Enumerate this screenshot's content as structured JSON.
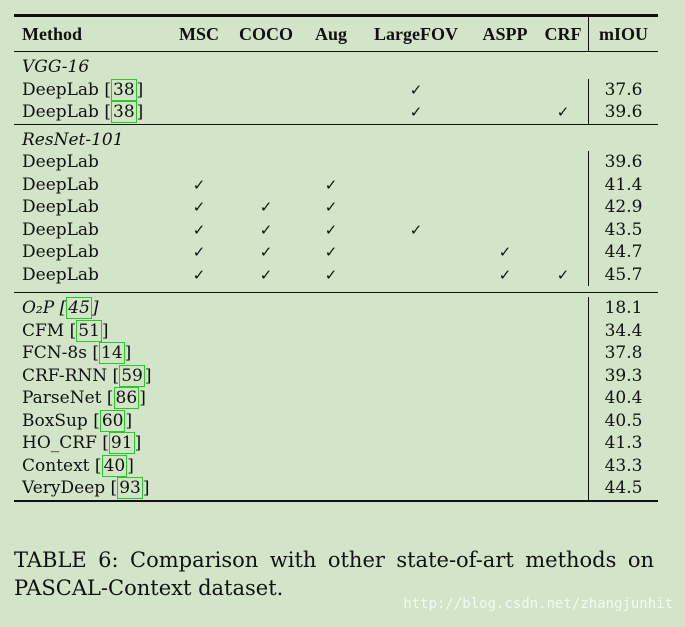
{
  "table": {
    "headers": [
      "Method",
      "MSC",
      "COCO",
      "Aug",
      "LargeFOV",
      "ASPP",
      "CRF",
      "mIOU"
    ],
    "check_symbol": "✓",
    "groups": [
      {
        "label": "VGG-16",
        "rows": [
          {
            "method": "DeepLab",
            "ref": "38",
            "msc": "",
            "coco": "",
            "aug": "",
            "largefov": "✓",
            "aspp": "",
            "crf": "",
            "miou": "37.6"
          },
          {
            "method": "DeepLab",
            "ref": "38",
            "msc": "",
            "coco": "",
            "aug": "",
            "largefov": "✓",
            "aspp": "",
            "crf": "✓",
            "miou": "39.6"
          }
        ]
      },
      {
        "label": "ResNet-101",
        "rows": [
          {
            "method": "DeepLab",
            "ref": "",
            "msc": "",
            "coco": "",
            "aug": "",
            "largefov": "",
            "aspp": "",
            "crf": "",
            "miou": "39.6"
          },
          {
            "method": "DeepLab",
            "ref": "",
            "msc": "✓",
            "coco": "",
            "aug": "✓",
            "largefov": "",
            "aspp": "",
            "crf": "",
            "miou": "41.4"
          },
          {
            "method": "DeepLab",
            "ref": "",
            "msc": "✓",
            "coco": "✓",
            "aug": "✓",
            "largefov": "",
            "aspp": "",
            "crf": "",
            "miou": "42.9"
          },
          {
            "method": "DeepLab",
            "ref": "",
            "msc": "✓",
            "coco": "✓",
            "aug": "✓",
            "largefov": "✓",
            "aspp": "",
            "crf": "",
            "miou": "43.5"
          },
          {
            "method": "DeepLab",
            "ref": "",
            "msc": "✓",
            "coco": "✓",
            "aug": "✓",
            "largefov": "",
            "aspp": "✓",
            "crf": "",
            "miou": "44.7"
          },
          {
            "method": "DeepLab",
            "ref": "",
            "msc": "✓",
            "coco": "✓",
            "aug": "✓",
            "largefov": "",
            "aspp": "✓",
            "crf": "✓",
            "miou": "45.7"
          }
        ]
      }
    ],
    "others": [
      {
        "method": "O₂P",
        "ref": "45",
        "miou": "18.1"
      },
      {
        "method": "CFM",
        "ref": "51",
        "miou": "34.4"
      },
      {
        "method": "FCN-8s",
        "ref": "14",
        "miou": "37.8"
      },
      {
        "method": "CRF-RNN",
        "ref": "59",
        "miou": "39.3"
      },
      {
        "method": "ParseNet",
        "ref": "86",
        "miou": "40.4"
      },
      {
        "method": "BoxSup",
        "ref": "60",
        "miou": "40.5"
      },
      {
        "method": "HO_CRF",
        "ref": "91",
        "miou": "41.3"
      },
      {
        "method": "Context",
        "ref": "40",
        "miou": "43.3"
      },
      {
        "method": "VeryDeep",
        "ref": "93",
        "miou": "44.5"
      }
    ]
  },
  "caption": "TABLE 6: Comparison with other state-of-art methods on PASCAL-Context dataset.",
  "watermark": "http://blog.csdn.net/zhangjunhit",
  "colors": {
    "background": "#d2e5c8",
    "ref_box": "#22cc22"
  }
}
